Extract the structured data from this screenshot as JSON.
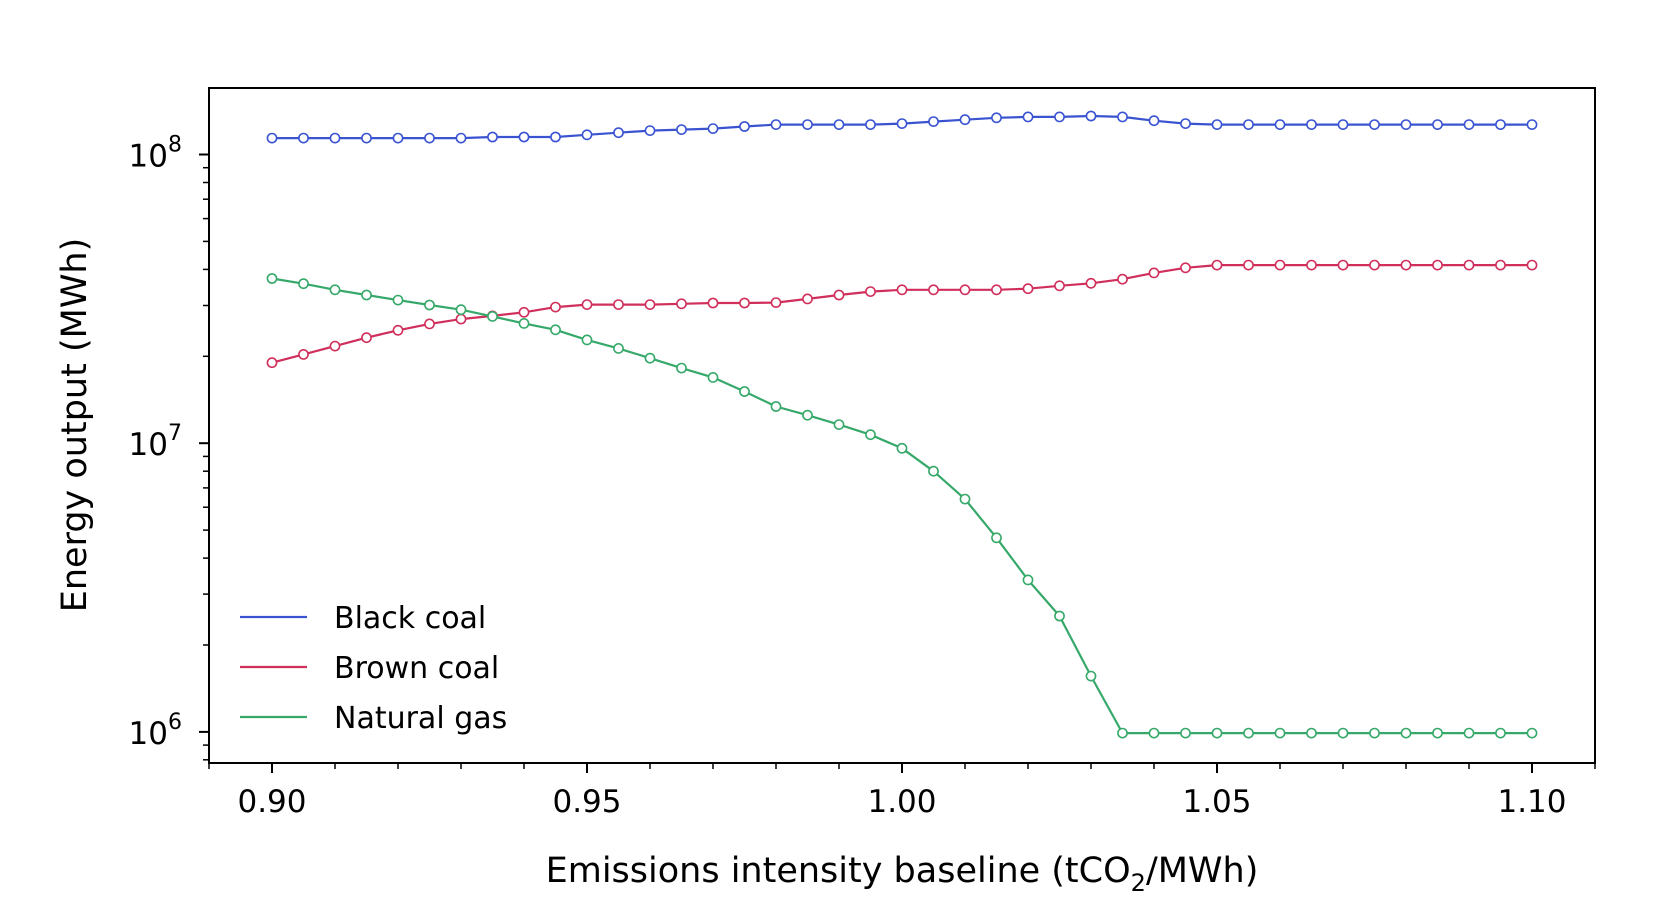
{
  "chart_data": {
    "type": "line",
    "title": "",
    "xlabel": {
      "prefix": "Emissions intensity baseline (tCO",
      "subscript": "2",
      "suffix": "/MWh)"
    },
    "ylabel": "Energy output (MWh)",
    "x_scale": "linear",
    "y_scale": "log",
    "xlim": [
      0.89,
      1.11
    ],
    "ylim": [
      780000,
      170000000
    ],
    "x_ticks": [
      {
        "value": 0.9,
        "label": "0.90"
      },
      {
        "value": 0.95,
        "label": "0.95"
      },
      {
        "value": 1.0,
        "label": "1.00"
      },
      {
        "value": 1.05,
        "label": "1.05"
      },
      {
        "value": 1.1,
        "label": "1.10"
      }
    ],
    "y_ticks": [
      {
        "value": 1000000,
        "base": "10",
        "exp": "6"
      },
      {
        "value": 10000000,
        "base": "10",
        "exp": "7"
      },
      {
        "value": 100000000,
        "base": "10",
        "exp": "8"
      }
    ],
    "grid": false,
    "legend_position": "lower-left",
    "x": [
      0.9,
      0.905,
      0.91,
      0.915,
      0.92,
      0.925,
      0.93,
      0.935,
      0.94,
      0.945,
      0.95,
      0.955,
      0.96,
      0.965,
      0.97,
      0.975,
      0.98,
      0.985,
      0.99,
      0.995,
      1.0,
      1.005,
      1.01,
      1.015,
      1.02,
      1.025,
      1.03,
      1.035,
      1.04,
      1.045,
      1.05,
      1.055,
      1.06,
      1.065,
      1.07,
      1.075,
      1.08,
      1.085,
      1.09,
      1.095,
      1.1
    ],
    "series": [
      {
        "name": "Black coal",
        "color": "#3a53d1",
        "values": [
          114000000,
          114000000,
          114000000,
          114000000,
          114000000,
          114000000,
          114000000,
          115000000,
          115000000,
          115000000,
          117000000,
          119000000,
          121000000,
          122000000,
          123000000,
          125000000,
          127000000,
          127000000,
          127000000,
          127000000,
          128000000,
          130000000,
          132000000,
          134000000,
          135000000,
          135000000,
          136000000,
          135000000,
          131000000,
          128000000,
          127000000,
          127000000,
          127000000,
          127000000,
          127000000,
          127000000,
          127000000,
          127000000,
          127000000,
          127000000,
          127000000
        ]
      },
      {
        "name": "Brown coal",
        "color": "#d02f5b",
        "values": [
          19000000,
          20300000,
          21700000,
          23200000,
          24600000,
          25900000,
          26900000,
          27600000,
          28400000,
          29600000,
          30200000,
          30200000,
          30200000,
          30400000,
          30600000,
          30600000,
          30700000,
          31600000,
          32600000,
          33500000,
          34000000,
          34000000,
          34000000,
          34000000,
          34300000,
          35100000,
          35800000,
          37000000,
          38900000,
          40500000,
          41400000,
          41400000,
          41400000,
          41400000,
          41400000,
          41400000,
          41400000,
          41400000,
          41400000,
          41400000,
          41400000
        ]
      },
      {
        "name": "Natural gas",
        "color": "#36a96a",
        "values": [
          37200000,
          35700000,
          34000000,
          32600000,
          31300000,
          30100000,
          29000000,
          27500000,
          26000000,
          24700000,
          22800000,
          21300000,
          19700000,
          18200000,
          16900000,
          15100000,
          13400000,
          12500000,
          11600000,
          10700000,
          9600000,
          8000000,
          6400000,
          4700000,
          3360000,
          2520000,
          1560000,
          990000,
          990000,
          990000,
          990000,
          990000,
          990000,
          990000,
          990000,
          990000,
          990000,
          990000,
          990000,
          990000,
          990000
        ]
      }
    ]
  }
}
